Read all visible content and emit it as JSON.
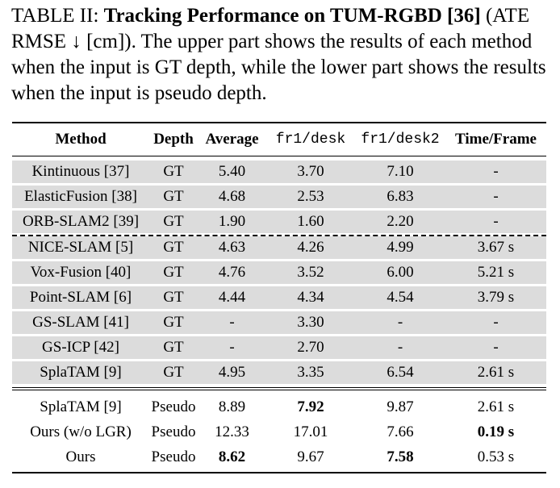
{
  "caption": {
    "label": "TABLE II:",
    "title": "Tracking Performance on TUM-RGBD [36]",
    "text": "(ATE RMSE ↓ [cm]). The upper part shows the results of each method when the input is GT depth, while the lower part shows the results when the input is pseudo depth."
  },
  "table": {
    "headers": [
      "Method",
      "Depth",
      "Average",
      "fr1/desk",
      "fr1/desk2",
      "Time/Frame"
    ],
    "upper_rows": [
      [
        "Kintinuous [37]",
        "GT",
        "5.40",
        "3.70",
        "7.10",
        "-"
      ],
      [
        "ElasticFusion [38]",
        "GT",
        "4.68",
        "2.53",
        "6.83",
        "-"
      ],
      [
        "ORB-SLAM2 [39]",
        "GT",
        "1.90",
        "1.60",
        "2.20",
        "-"
      ],
      [
        "NICE-SLAM [5]",
        "GT",
        "4.63",
        "4.26",
        "4.99",
        "3.67 s"
      ],
      [
        "Vox-Fusion [40]",
        "GT",
        "4.76",
        "3.52",
        "6.00",
        "5.21 s"
      ],
      [
        "Point-SLAM [6]",
        "GT",
        "4.44",
        "4.34",
        "4.54",
        "3.79 s"
      ],
      [
        "GS-SLAM [41]",
        "GT",
        "-",
        "3.30",
        "-",
        "-"
      ],
      [
        "GS-ICP [42]",
        "GT",
        "-",
        "2.70",
        "-",
        "-"
      ],
      [
        "SplaTAM [9]",
        "GT",
        "4.95",
        "3.35",
        "6.54",
        "2.61 s"
      ]
    ],
    "lower_rows": [
      [
        "SplaTAM [9]",
        "Pseudo",
        "8.89",
        "7.92",
        "9.87",
        "2.61 s"
      ],
      [
        "Ours (w/o LGR)",
        "Pseudo",
        "12.33",
        "17.01",
        "7.66",
        "0.19 s"
      ],
      [
        "Ours",
        "Pseudo",
        "8.62",
        "9.67",
        "7.58",
        "0.53 s"
      ]
    ],
    "lower_bold": [
      [
        false,
        false,
        false,
        true,
        false,
        false
      ],
      [
        false,
        false,
        false,
        false,
        false,
        true
      ],
      [
        false,
        false,
        true,
        false,
        true,
        false
      ]
    ]
  }
}
